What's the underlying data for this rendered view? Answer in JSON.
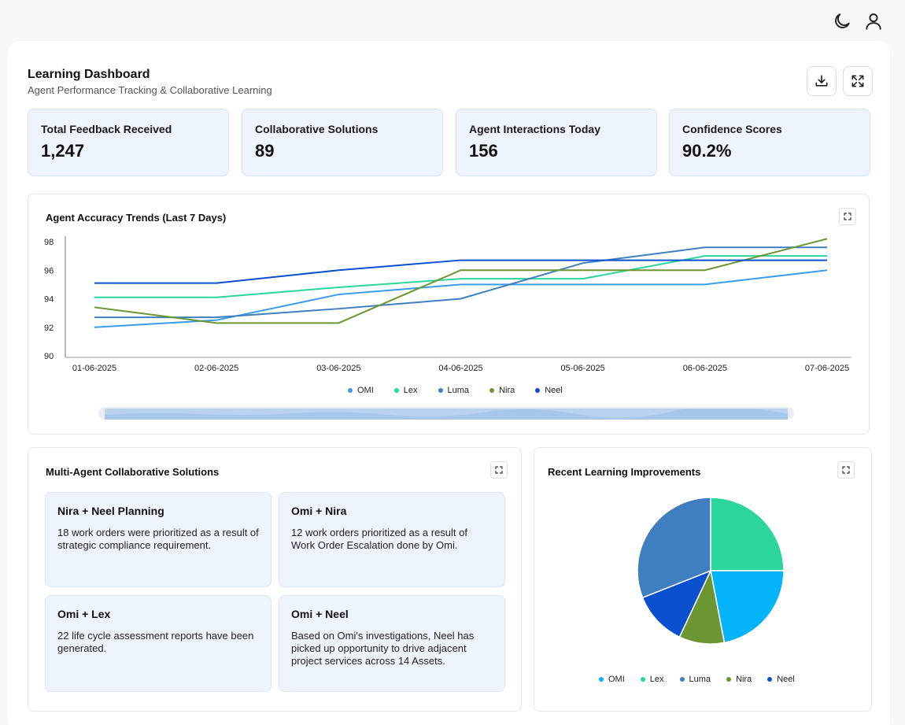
{
  "header": {
    "title": "Learning Dashboard",
    "subtitle": "Agent Performance Tracking & Collaborative Learning"
  },
  "icons": {
    "theme": "moon-icon",
    "user": "user-icon",
    "download": "download-icon",
    "fullscreen": "expand-icon"
  },
  "kpis": [
    {
      "label": "Total Feedback Received",
      "value": "1,247"
    },
    {
      "label": "Collaborative Solutions",
      "value": "89"
    },
    {
      "label": "Agent Interactions Today",
      "value": "156"
    },
    {
      "label": "Confidence Scores",
      "value": "90.2%"
    }
  ],
  "colors": {
    "OMI": "#3a9be8",
    "Lex": "#2ad69a",
    "Luma": "#3f7fc0",
    "Nira": "#6b9632",
    "Neel": "#0a4fce",
    "kpi_bg": "#eef4fd"
  },
  "chart_data": [
    {
      "type": "line",
      "title": "Agent Accuracy Trends (Last 7 Days)",
      "xlabel": "",
      "ylabel": "",
      "categories": [
        "01-06-2025",
        "02-06-2025",
        "03-06-2025",
        "04-06-2025",
        "05-06-2025",
        "06-06-2025",
        "07-06-2025"
      ],
      "ylim": [
        90,
        98
      ],
      "yticks": [
        90,
        92,
        94,
        96,
        98
      ],
      "grid": false,
      "legend": "bottom",
      "series": [
        {
          "name": "OMI",
          "values": [
            92.0,
            92.5,
            94.3,
            95.0,
            95.0,
            95.0,
            96.0
          ]
        },
        {
          "name": "Lex",
          "values": [
            94.1,
            94.1,
            94.8,
            95.4,
            95.4,
            97.0,
            97.0
          ]
        },
        {
          "name": "Luma",
          "values": [
            92.7,
            92.7,
            93.3,
            94.0,
            96.5,
            97.6,
            97.6
          ]
        },
        {
          "name": "Nira",
          "values": [
            93.4,
            92.3,
            92.3,
            96.0,
            96.0,
            96.0,
            98.2
          ]
        },
        {
          "name": "Neel",
          "values": [
            95.1,
            95.1,
            96.0,
            96.7,
            96.7,
            96.7,
            96.7
          ]
        }
      ]
    },
    {
      "type": "pie",
      "title": "Recent Learning Improvements",
      "legend": "bottom",
      "categories": [
        "OMI",
        "Lex",
        "Luma",
        "Nira",
        "Neel"
      ],
      "values": [
        22,
        25,
        31,
        10,
        12
      ],
      "order_note": "",
      "slice_order": [
        "Lex",
        "OMI",
        "Nira",
        "Neel",
        "Luma"
      ],
      "slice_values": [
        25,
        22,
        10,
        12,
        31
      ],
      "slice_colors": [
        "#2ad69a",
        "#03b4fa",
        "#6b9632",
        "#0a4fce",
        "#3f7fc0"
      ]
    }
  ],
  "collab": {
    "title": "Multi-Agent Collaborative Solutions",
    "items": [
      {
        "title": "Nira + Neel Planning",
        "text": "18 work orders were prioritized as a result of strategic compliance requirement."
      },
      {
        "title": "Omi + Nira",
        "text": "12 work orders prioritized as a result of Work Order Escalation done by Omi."
      },
      {
        "title": "Omi + Lex",
        "text": "22 life cycle assessment reports have been generated."
      },
      {
        "title": "Omi + Neel",
        "text": "Based on Omi's investigations, Neel has picked up opportunity to drive adjacent project services across 14 Assets."
      }
    ]
  }
}
